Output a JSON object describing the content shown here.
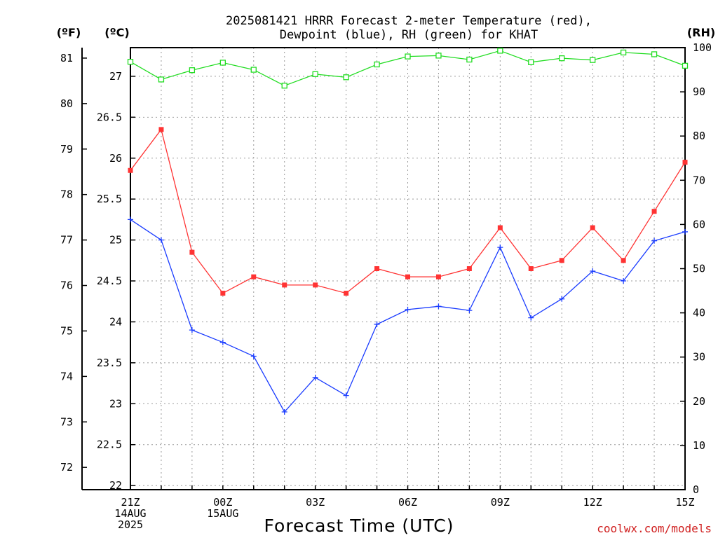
{
  "title_line1": "2025081421 HRRR Forecast 2-meter Temperature (red),",
  "title_line2": "Dewpoint (blue), RH (green) for KHAT",
  "unit_f": "(ºF)",
  "unit_c": "(ºC)",
  "unit_rh": "(RH)",
  "credit": "coolwx.com/models",
  "chart_data": {
    "type": "line",
    "title": "2025081421 HRRR Forecast 2-meter Temperature (red), Dewpoint (blue), RH (green) for KHAT",
    "xlabel": "Forecast Time (UTC)",
    "x": [
      "21Z",
      "22Z",
      "23Z",
      "00Z",
      "01Z",
      "02Z",
      "03Z",
      "04Z",
      "05Z",
      "06Z",
      "07Z",
      "08Z",
      "09Z",
      "10Z",
      "11Z",
      "12Z",
      "13Z",
      "14Z",
      "15Z"
    ],
    "x_tick_labels": [
      {
        "index": 0,
        "lines": [
          "21Z",
          "14AUG",
          "2025"
        ]
      },
      {
        "index": 3,
        "lines": [
          "00Z",
          "15AUG"
        ]
      },
      {
        "index": 6,
        "lines": [
          "03Z"
        ]
      },
      {
        "index": 9,
        "lines": [
          "06Z"
        ]
      },
      {
        "index": 12,
        "lines": [
          "09Z"
        ]
      },
      {
        "index": 15,
        "lines": [
          "12Z"
        ]
      },
      {
        "index": 18,
        "lines": [
          "15Z"
        ]
      }
    ],
    "y_left_c": {
      "label": "(ºC)",
      "range": [
        21.95,
        27.35
      ],
      "ticks": [
        22,
        22.5,
        23,
        23.5,
        24,
        24.5,
        25,
        25.5,
        26,
        26.5,
        27
      ]
    },
    "y_left_f": {
      "label": "(ºF)",
      "ticks": [
        72,
        73,
        74,
        75,
        76,
        77,
        78,
        79,
        80,
        81
      ]
    },
    "y_right_rh": {
      "label": "(RH)",
      "range": [
        0,
        100
      ],
      "ticks": [
        0,
        10,
        20,
        30,
        40,
        50,
        60,
        70,
        80,
        90,
        100
      ]
    },
    "grid": true,
    "series": [
      {
        "name": "Temperature",
        "axis": "celsius",
        "color": "#ff3333",
        "marker": "filled-square",
        "values": [
          25.85,
          26.35,
          24.85,
          24.35,
          24.55,
          24.45,
          24.45,
          24.35,
          24.65,
          24.55,
          24.55,
          24.65,
          25.15,
          24.65,
          24.75,
          25.15,
          24.75,
          25.35,
          25.95
        ]
      },
      {
        "name": "Dewpoint",
        "axis": "celsius",
        "color": "#1a3cff",
        "marker": "plus",
        "values": [
          25.25,
          25.0,
          23.9,
          23.75,
          23.58,
          22.9,
          23.32,
          23.1,
          23.97,
          24.15,
          24.19,
          24.14,
          24.91,
          24.05,
          24.28,
          24.62,
          24.5,
          24.99,
          25.1
        ]
      },
      {
        "name": "RH",
        "axis": "rh",
        "color": "#22dd22",
        "marker": "open-square",
        "values": [
          96.8,
          92.8,
          94.9,
          96.6,
          95.0,
          91.4,
          94.0,
          93.3,
          96.2,
          98.0,
          98.2,
          97.3,
          99.3,
          96.7,
          97.6,
          97.2,
          98.9,
          98.5,
          95.9
        ]
      }
    ]
  }
}
